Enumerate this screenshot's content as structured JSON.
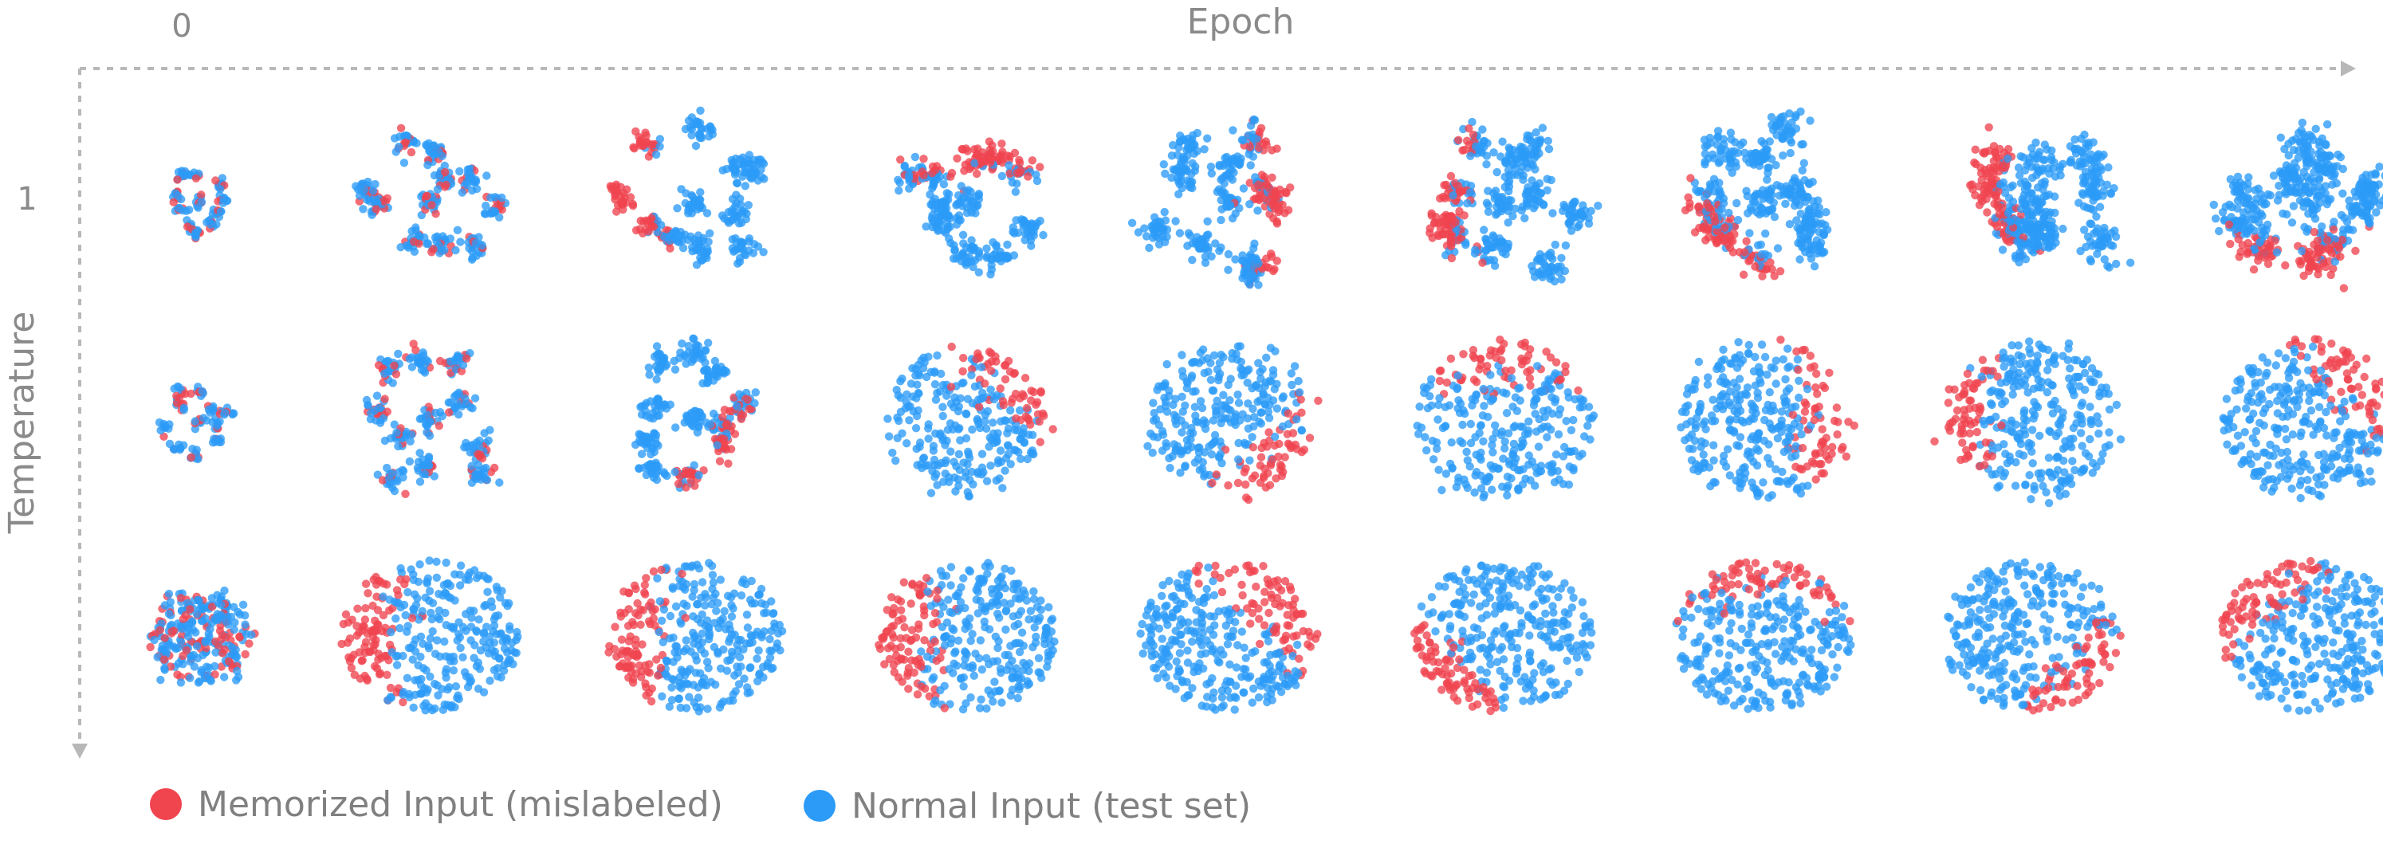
{
  "chart_data": {
    "type": "scatter",
    "title": "",
    "xlabel": "Epoch",
    "ylabel": "Temperature",
    "x_tick_labels": [
      "0"
    ],
    "y_tick_labels": [
      "1"
    ],
    "rows": 3,
    "columns": 9,
    "legend_position": "bottom-left",
    "series": [
      {
        "name": "Memorized Input (mislabeled)",
        "color": "#f0444f"
      },
      {
        "name": "Normal Input (test set)",
        "color": "#2c9bf7"
      }
    ],
    "panels": [
      {
        "row": 0,
        "col": 0,
        "layout": "blobs",
        "clusters": 10,
        "memorized_fraction": 0.3,
        "memorized_region": "scattered",
        "spread": 0.8
      },
      {
        "row": 0,
        "col": 1,
        "layout": "blobs",
        "clusters": 10,
        "memorized_fraction": 0.28,
        "memorized_region": "scattered",
        "spread": 0.85
      },
      {
        "row": 0,
        "col": 2,
        "layout": "blobs",
        "clusters": 10,
        "memorized_fraction": 0.25,
        "memorized_region": "left",
        "spread": 0.85
      },
      {
        "row": 0,
        "col": 3,
        "layout": "blobs",
        "clusters": 10,
        "memorized_fraction": 0.28,
        "memorized_region": "top",
        "spread": 0.85
      },
      {
        "row": 0,
        "col": 4,
        "layout": "blobs",
        "clusters": 10,
        "memorized_fraction": 0.25,
        "memorized_region": "right",
        "spread": 0.9
      },
      {
        "row": 0,
        "col": 5,
        "layout": "blobs",
        "clusters": 10,
        "memorized_fraction": 0.22,
        "memorized_region": "left",
        "spread": 0.9
      },
      {
        "row": 0,
        "col": 6,
        "layout": "blobs",
        "clusters": 10,
        "memorized_fraction": 0.22,
        "memorized_region": "bottom-left",
        "spread": 0.9
      },
      {
        "row": 0,
        "col": 7,
        "layout": "blobs",
        "clusters": 10,
        "memorized_fraction": 0.22,
        "memorized_region": "left",
        "spread": 0.9
      },
      {
        "row": 0,
        "col": 8,
        "layout": "blobs",
        "clusters": 10,
        "memorized_fraction": 0.2,
        "memorized_region": "bottom",
        "spread": 0.9
      },
      {
        "row": 1,
        "col": 0,
        "layout": "blobs",
        "clusters": 10,
        "memorized_fraction": 0.3,
        "memorized_region": "scattered",
        "spread": 0.8
      },
      {
        "row": 1,
        "col": 1,
        "layout": "blobs",
        "clusters": 10,
        "memorized_fraction": 0.25,
        "memorized_region": "scattered",
        "spread": 0.85
      },
      {
        "row": 1,
        "col": 2,
        "layout": "blobs",
        "clusters": 10,
        "memorized_fraction": 0.22,
        "memorized_region": "bottom-right",
        "spread": 0.85
      },
      {
        "row": 1,
        "col": 3,
        "layout": "cloud",
        "clusters": 7,
        "memorized_fraction": 0.2,
        "memorized_region": "top-right",
        "spread": 0.9
      },
      {
        "row": 1,
        "col": 4,
        "layout": "cloud",
        "clusters": 6,
        "memorized_fraction": 0.2,
        "memorized_region": "bottom-right",
        "spread": 0.9
      },
      {
        "row": 1,
        "col": 5,
        "layout": "cloud",
        "clusters": 6,
        "memorized_fraction": 0.2,
        "memorized_region": "top",
        "spread": 0.95
      },
      {
        "row": 1,
        "col": 6,
        "layout": "cloud",
        "clusters": 5,
        "memorized_fraction": 0.2,
        "memorized_region": "right",
        "spread": 0.95
      },
      {
        "row": 1,
        "col": 7,
        "layout": "cloud",
        "clusters": 5,
        "memorized_fraction": 0.2,
        "memorized_region": "left",
        "spread": 0.95
      },
      {
        "row": 1,
        "col": 8,
        "layout": "cloud",
        "clusters": 5,
        "memorized_fraction": 0.2,
        "memorized_region": "top-right",
        "spread": 0.95
      },
      {
        "row": 2,
        "col": 0,
        "layout": "cloud",
        "clusters": 8,
        "memorized_fraction": 0.3,
        "memorized_region": "scattered",
        "spread": 0.75
      },
      {
        "row": 2,
        "col": 1,
        "layout": "disc",
        "clusters": 4,
        "memorized_fraction": 0.28,
        "memorized_region": "left",
        "spread": 0.95
      },
      {
        "row": 2,
        "col": 2,
        "layout": "disc",
        "clusters": 4,
        "memorized_fraction": 0.28,
        "memorized_region": "left",
        "spread": 0.95
      },
      {
        "row": 2,
        "col": 3,
        "layout": "disc",
        "clusters": 4,
        "memorized_fraction": 0.28,
        "memorized_region": "left",
        "spread": 0.95
      },
      {
        "row": 2,
        "col": 4,
        "layout": "disc",
        "clusters": 4,
        "memorized_fraction": 0.25,
        "memorized_region": "top-right",
        "spread": 0.95
      },
      {
        "row": 2,
        "col": 5,
        "layout": "disc",
        "clusters": 4,
        "memorized_fraction": 0.22,
        "memorized_region": "bottom-left",
        "spread": 0.95
      },
      {
        "row": 2,
        "col": 6,
        "layout": "disc",
        "clusters": 4,
        "memorized_fraction": 0.2,
        "memorized_region": "top",
        "spread": 0.95
      },
      {
        "row": 2,
        "col": 7,
        "layout": "disc",
        "clusters": 4,
        "memorized_fraction": 0.2,
        "memorized_region": "bottom-right",
        "spread": 0.95
      },
      {
        "row": 2,
        "col": 8,
        "layout": "disc",
        "clusters": 4,
        "memorized_fraction": 0.22,
        "memorized_region": "top-left",
        "spread": 0.95
      }
    ]
  }
}
